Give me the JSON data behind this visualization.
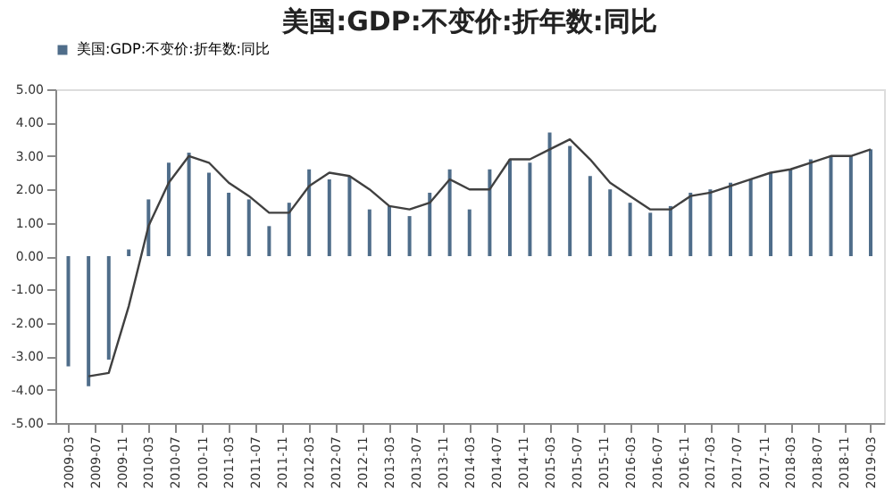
{
  "chart_data": {
    "type": "bar",
    "title": "美国:GDP:不变价:折年数:同比",
    "x": [
      "2009-03",
      "2009-06",
      "2009-09",
      "2009-12",
      "2010-03",
      "2010-06",
      "2010-09",
      "2010-12",
      "2011-03",
      "2011-06",
      "2011-09",
      "2011-12",
      "2012-03",
      "2012-06",
      "2012-09",
      "2012-12",
      "2013-03",
      "2013-06",
      "2013-09",
      "2013-12",
      "2014-03",
      "2014-06",
      "2014-09",
      "2014-12",
      "2015-03",
      "2015-06",
      "2015-09",
      "2015-12",
      "2016-03",
      "2016-06",
      "2016-09",
      "2016-12",
      "2017-03",
      "2017-06",
      "2017-09",
      "2017-12",
      "2018-03",
      "2018-06",
      "2018-09",
      "2018-12",
      "2019-03"
    ],
    "series": [
      {
        "name": "美国:GDP:不变价:折年数:同比",
        "color": "#4f6d8a",
        "values": [
          -3.3,
          -3.9,
          -3.1,
          0.2,
          1.7,
          2.8,
          3.1,
          2.5,
          1.9,
          1.7,
          0.9,
          1.6,
          2.6,
          2.3,
          2.4,
          1.4,
          1.5,
          1.2,
          1.9,
          2.6,
          1.4,
          2.6,
          2.9,
          2.8,
          3.7,
          3.3,
          2.4,
          2.0,
          1.6,
          1.3,
          1.5,
          1.9,
          2.0,
          2.2,
          2.3,
          2.5,
          2.6,
          2.9,
          3.0,
          3.0,
          3.2
        ]
      },
      {
        "type": "line",
        "color": "#404040",
        "values": [
          null,
          -3.6,
          -3.5,
          -1.5,
          0.9,
          2.2,
          3.0,
          2.8,
          2.2,
          1.8,
          1.3,
          1.3,
          2.1,
          2.5,
          2.4,
          2.0,
          1.5,
          1.4,
          1.6,
          2.3,
          2.0,
          2.0,
          2.9,
          2.9,
          3.2,
          3.5,
          2.9,
          2.2,
          1.8,
          1.4,
          1.4,
          1.8,
          1.9,
          2.1,
          2.3,
          2.5,
          2.6,
          2.8,
          3.0,
          3.0,
          3.2
        ]
      }
    ],
    "xlim": [
      "2009-01",
      "2019-05"
    ],
    "xticks": [
      "2009-03",
      "2009-07",
      "2009-11",
      "2010-03",
      "2010-07",
      "2010-11",
      "2011-03",
      "2011-07",
      "2011-11",
      "2012-03",
      "2012-07",
      "2012-11",
      "2013-03",
      "2013-07",
      "2013-11",
      "2014-03",
      "2014-07",
      "2014-11",
      "2015-03",
      "2015-07",
      "2015-11",
      "2016-03",
      "2016-07",
      "2016-11",
      "2017-03",
      "2017-07",
      "2017-11",
      "2018-03",
      "2018-07",
      "2018-11",
      "2019-03"
    ],
    "ylim": [
      -5,
      5
    ],
    "yticks": [
      {
        "value": -5,
        "label": "-5.00"
      },
      {
        "value": -4,
        "label": "-4.00"
      },
      {
        "value": -3,
        "label": "-3.00"
      },
      {
        "value": -2,
        "label": "-2.00"
      },
      {
        "value": -1,
        "label": "-1.00"
      },
      {
        "value": 0,
        "label": "0.00"
      },
      {
        "value": 1,
        "label": "1.00"
      },
      {
        "value": 2,
        "label": "2.00"
      },
      {
        "value": 3,
        "label": "3.00"
      },
      {
        "value": 4,
        "label": "4.00"
      },
      {
        "value": 5,
        "label": "5.00"
      }
    ],
    "grid": false,
    "legend": "top"
  }
}
